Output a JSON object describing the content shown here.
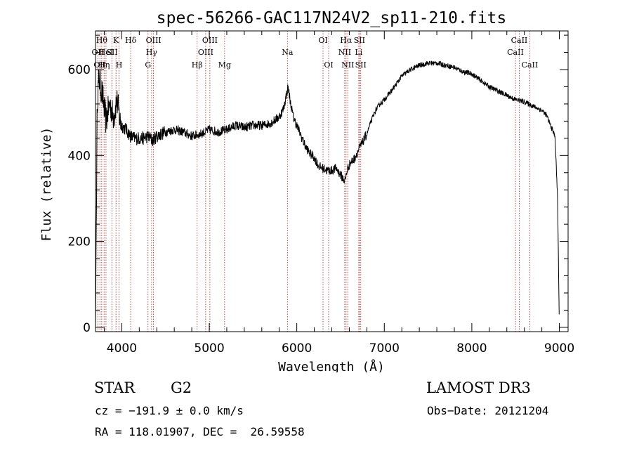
{
  "chart_data": {
    "type": "line",
    "title": "spec-56266-GAC117N24V2_sp11-210.fits",
    "xlabel": "Wavelength (Å)",
    "ylabel": "Flux (relative)",
    "xlim": [
      3700,
      9100
    ],
    "ylim": [
      -10,
      690
    ],
    "x_ticks": [
      4000,
      5000,
      6000,
      7000,
      8000,
      9000
    ],
    "x_tick_labels": [
      "4000",
      "5000",
      "6000",
      "7000",
      "8000",
      "9000"
    ],
    "y_ticks": [
      0,
      200,
      400,
      600
    ],
    "y_tick_labels": [
      "0",
      "200",
      "400",
      "600"
    ],
    "line_color": "#000000",
    "marker_color": "#b22222",
    "series": [
      {
        "name": "flux",
        "x": [
          3700,
          3720,
          3740,
          3760,
          3780,
          3800,
          3820,
          3840,
          3860,
          3880,
          3900,
          3920,
          3940,
          3960,
          3980,
          4000,
          4050,
          4100,
          4150,
          4200,
          4250,
          4300,
          4350,
          4400,
          4450,
          4500,
          4600,
          4700,
          4800,
          4900,
          5000,
          5100,
          5200,
          5300,
          5400,
          5500,
          5600,
          5700,
          5800,
          5850,
          5900,
          5930,
          5960,
          6000,
          6050,
          6100,
          6150,
          6200,
          6250,
          6300,
          6350,
          6400,
          6450,
          6500,
          6550,
          6580,
          6620,
          6650,
          6700,
          6750,
          6800,
          6850,
          6900,
          6950,
          7000,
          7100,
          7200,
          7300,
          7400,
          7500,
          7600,
          7700,
          7800,
          7900,
          8000,
          8100,
          8200,
          8300,
          8400,
          8500,
          8600,
          8700,
          8800,
          8850,
          8900,
          8950,
          8980,
          9000
        ],
        "y": [
          0,
          530,
          580,
          560,
          540,
          510,
          480,
          500,
          520,
          510,
          490,
          500,
          530,
          510,
          480,
          470,
          460,
          445,
          440,
          440,
          440,
          445,
          435,
          445,
          450,
          455,
          460,
          455,
          445,
          450,
          460,
          455,
          460,
          470,
          465,
          470,
          470,
          475,
          490,
          510,
          560,
          520,
          490,
          470,
          445,
          420,
          405,
          395,
          375,
          370,
          365,
          365,
          370,
          355,
          340,
          370,
          385,
          390,
          410,
          430,
          450,
          480,
          505,
          520,
          530,
          555,
          585,
          600,
          610,
          615,
          615,
          610,
          605,
          595,
          590,
          575,
          560,
          550,
          540,
          530,
          525,
          515,
          505,
          495,
          470,
          445,
          300,
          0
        ]
      }
    ],
    "line_markers": [
      {
        "wavelength": 3727,
        "label": "OII",
        "row": 2
      },
      {
        "wavelength": 3750,
        "label": "OII",
        "row": 3
      },
      {
        "wavelength": 3771,
        "label": "Hθ",
        "row": 1
      },
      {
        "wavelength": 3798,
        "label": "Hη",
        "row": 3
      },
      {
        "wavelength": 3820,
        "label": "HeI",
        "row": 2
      },
      {
        "wavelength": 3889,
        "label": "SII",
        "row": 2
      },
      {
        "wavelength": 3934,
        "label": "K",
        "row": 1
      },
      {
        "wavelength": 3969,
        "label": "H",
        "row": 3
      },
      {
        "wavelength": 4102,
        "label": "Hδ",
        "row": 1
      },
      {
        "wavelength": 4300,
        "label": "G",
        "row": 3
      },
      {
        "wavelength": 4341,
        "label": "Hγ",
        "row": 2
      },
      {
        "wavelength": 4363,
        "label": "OIII",
        "row": 1
      },
      {
        "wavelength": 4861,
        "label": "Hβ",
        "row": 3
      },
      {
        "wavelength": 4959,
        "label": "OIII",
        "row": 2
      },
      {
        "wavelength": 5007,
        "label": "OIII",
        "row": 1
      },
      {
        "wavelength": 5175,
        "label": "Mg",
        "row": 3
      },
      {
        "wavelength": 5893,
        "label": "Na",
        "row": 2
      },
      {
        "wavelength": 6300,
        "label": "OI",
        "row": 1
      },
      {
        "wavelength": 6364,
        "label": "OI",
        "row": 3
      },
      {
        "wavelength": 6548,
        "label": "NII",
        "row": 2
      },
      {
        "wavelength": 6563,
        "label": "Hα",
        "row": 1
      },
      {
        "wavelength": 6583,
        "label": "NII",
        "row": 3
      },
      {
        "wavelength": 6708,
        "label": "Li",
        "row": 2
      },
      {
        "wavelength": 6716,
        "label": "SII",
        "row": 1
      },
      {
        "wavelength": 6731,
        "label": "SII",
        "row": 3
      },
      {
        "wavelength": 8498,
        "label": "CaII",
        "row": 2
      },
      {
        "wavelength": 8542,
        "label": "CaII",
        "row": 1
      },
      {
        "wavelength": 8662,
        "label": "CaII",
        "row": 3
      }
    ]
  },
  "info": {
    "object_class": "STAR",
    "subclass": "G2",
    "survey": "LAMOST DR3",
    "redshift": "cz = −191.9 ± 0.0 km/s",
    "obs_date": "Obs−Date: 20121204",
    "coords": "RA = 118.01907, DEC =  26.59558"
  }
}
